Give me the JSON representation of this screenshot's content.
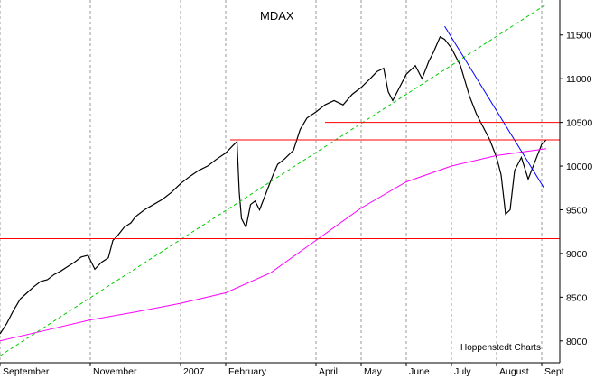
{
  "chart_data": {
    "type": "line",
    "title": "MDAX",
    "source_label": "Hoppenstedt Charts",
    "x_tick_labels": [
      "September",
      "November",
      "2007",
      "February",
      "April",
      "May",
      "June",
      "July",
      "August",
      "Sept"
    ],
    "x_tick_months": [
      0,
      2,
      4,
      5,
      7,
      8,
      9,
      10,
      11,
      12
    ],
    "y_tick_labels": [
      "11500",
      "11000",
      "10500",
      "10000",
      "9500",
      "9000",
      "8500",
      "8000"
    ],
    "y_ticks": [
      11500,
      11000,
      10500,
      10000,
      9500,
      9000,
      8500,
      8000
    ],
    "ylim": [
      7750,
      11900
    ],
    "xlim_months": [
      0,
      12.4
    ],
    "grid": true,
    "series": [
      {
        "kind": "price",
        "color": "#000000",
        "points": [
          [
            0.0,
            8080
          ],
          [
            0.15,
            8200
          ],
          [
            0.3,
            8350
          ],
          [
            0.45,
            8480
          ],
          [
            0.6,
            8550
          ],
          [
            0.75,
            8620
          ],
          [
            0.9,
            8680
          ],
          [
            1.05,
            8700
          ],
          [
            1.2,
            8760
          ],
          [
            1.35,
            8800
          ],
          [
            1.5,
            8850
          ],
          [
            1.65,
            8900
          ],
          [
            1.8,
            8960
          ],
          [
            1.95,
            8980
          ],
          [
            2.1,
            8820
          ],
          [
            2.25,
            8900
          ],
          [
            2.4,
            8950
          ],
          [
            2.5,
            9150
          ],
          [
            2.6,
            9200
          ],
          [
            2.75,
            9300
          ],
          [
            2.9,
            9350
          ],
          [
            3.0,
            9420
          ],
          [
            3.2,
            9500
          ],
          [
            3.4,
            9560
          ],
          [
            3.6,
            9620
          ],
          [
            3.8,
            9700
          ],
          [
            4.0,
            9800
          ],
          [
            4.2,
            9880
          ],
          [
            4.4,
            9950
          ],
          [
            4.6,
            10000
          ],
          [
            4.8,
            10080
          ],
          [
            5.0,
            10150
          ],
          [
            5.15,
            10230
          ],
          [
            5.25,
            10280
          ],
          [
            5.3,
            9700
          ],
          [
            5.35,
            9400
          ],
          [
            5.45,
            9300
          ],
          [
            5.55,
            9560
          ],
          [
            5.65,
            9600
          ],
          [
            5.75,
            9500
          ],
          [
            5.9,
            9700
          ],
          [
            6.05,
            9900
          ],
          [
            6.15,
            10020
          ],
          [
            6.3,
            10080
          ],
          [
            6.5,
            10180
          ],
          [
            6.65,
            10420
          ],
          [
            6.8,
            10550
          ],
          [
            7.0,
            10620
          ],
          [
            7.2,
            10700
          ],
          [
            7.4,
            10750
          ],
          [
            7.6,
            10700
          ],
          [
            7.8,
            10820
          ],
          [
            8.0,
            10900
          ],
          [
            8.2,
            11000
          ],
          [
            8.35,
            11080
          ],
          [
            8.5,
            11120
          ],
          [
            8.6,
            10850
          ],
          [
            8.7,
            10750
          ],
          [
            8.85,
            10900
          ],
          [
            9.0,
            11050
          ],
          [
            9.2,
            11150
          ],
          [
            9.35,
            11000
          ],
          [
            9.5,
            11200
          ],
          [
            9.6,
            11300
          ],
          [
            9.75,
            11480
          ],
          [
            9.85,
            11450
          ],
          [
            10.0,
            11350
          ],
          [
            10.2,
            11150
          ],
          [
            10.4,
            10800
          ],
          [
            10.55,
            10600
          ],
          [
            10.7,
            10450
          ],
          [
            10.85,
            10300
          ],
          [
            11.0,
            10100
          ],
          [
            11.1,
            9900
          ],
          [
            11.2,
            9450
          ],
          [
            11.3,
            9500
          ],
          [
            11.4,
            9950
          ],
          [
            11.55,
            10100
          ],
          [
            11.7,
            9850
          ],
          [
            11.85,
            10050
          ],
          [
            12.0,
            10250
          ],
          [
            12.1,
            10300
          ]
        ]
      },
      {
        "kind": "moving-average",
        "color": "#ff00ff",
        "points": [
          [
            0.0,
            8000
          ],
          [
            1.0,
            8120
          ],
          [
            2.0,
            8240
          ],
          [
            3.0,
            8330
          ],
          [
            4.0,
            8430
          ],
          [
            5.0,
            8550
          ],
          [
            6.0,
            8780
          ],
          [
            7.0,
            9150
          ],
          [
            8.0,
            9520
          ],
          [
            9.0,
            9820
          ],
          [
            10.0,
            10000
          ],
          [
            11.0,
            10120
          ],
          [
            12.1,
            10200
          ]
        ]
      },
      {
        "kind": "uptrend-line",
        "color": "#00cc00",
        "points": [
          [
            0.0,
            7830
          ],
          [
            12.1,
            11850
          ]
        ]
      },
      {
        "kind": "downtrend-line",
        "color": "#0000ff",
        "points": [
          [
            9.85,
            11600
          ],
          [
            12.05,
            9750
          ]
        ]
      }
    ],
    "horizontal_lines": [
      {
        "color": "#ff0000",
        "y": 9170,
        "x_from": 0,
        "x_to": 12.4
      },
      {
        "color": "#ff0000",
        "y": 10300,
        "x_from": 5.1,
        "x_to": 12.4
      },
      {
        "color": "#ff0000",
        "y": 10500,
        "x_from": 7.2,
        "x_to": 12.4
      }
    ]
  }
}
